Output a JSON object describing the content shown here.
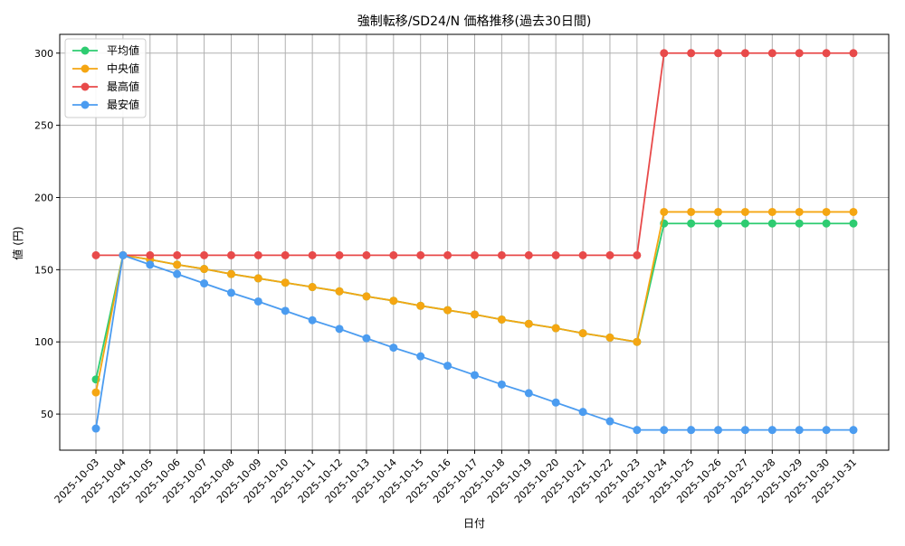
{
  "chart_data": {
    "type": "line",
    "title": "強制転移/SD24/N 価格推移(過去30日間)",
    "xlabel": "日付",
    "ylabel": "値 (円)",
    "ylim": [
      25,
      313
    ],
    "yticks": [
      50,
      100,
      150,
      200,
      250,
      300
    ],
    "grid": true,
    "legend_position": "top-left",
    "categories": [
      "2025-10-03",
      "2025-10-04",
      "2025-10-05",
      "2025-10-06",
      "2025-10-07",
      "2025-10-08",
      "2025-10-09",
      "2025-10-10",
      "2025-10-11",
      "2025-10-12",
      "2025-10-13",
      "2025-10-14",
      "2025-10-15",
      "2025-10-16",
      "2025-10-17",
      "2025-10-18",
      "2025-10-19",
      "2025-10-20",
      "2025-10-21",
      "2025-10-22",
      "2025-10-23",
      "2025-10-24",
      "2025-10-25",
      "2025-10-26",
      "2025-10-27",
      "2025-10-28",
      "2025-10-29",
      "2025-10-30",
      "2025-10-31"
    ],
    "series": [
      {
        "name": "平均値",
        "color": "#2ecc71",
        "values": [
          74,
          160,
          157,
          153.5,
          150.5,
          147,
          144,
          141,
          138,
          135,
          131.5,
          128.5,
          125,
          122,
          119,
          115.5,
          112.5,
          109.5,
          106,
          103,
          100,
          182,
          182,
          182,
          182,
          182,
          182,
          182,
          182
        ]
      },
      {
        "name": "中央値",
        "color": "#f5a612",
        "values": [
          65,
          160,
          157,
          153.5,
          150.5,
          147,
          144,
          141,
          138,
          135,
          131.5,
          128.5,
          125,
          122,
          119,
          115.5,
          112.5,
          109.5,
          106,
          103,
          100,
          190,
          190,
          190,
          190,
          190,
          190,
          190,
          190
        ]
      },
      {
        "name": "最高値",
        "color": "#e84a4a",
        "values": [
          160,
          160,
          160,
          160,
          160,
          160,
          160,
          160,
          160,
          160,
          160,
          160,
          160,
          160,
          160,
          160,
          160,
          160,
          160,
          160,
          160,
          300,
          300,
          300,
          300,
          300,
          300,
          300,
          300
        ]
      },
      {
        "name": "最安値",
        "color": "#4b9cf0",
        "values": [
          40,
          160,
          153.5,
          147,
          140.5,
          134,
          128,
          121.5,
          115,
          109,
          102.5,
          96,
          90,
          83.5,
          77,
          70.5,
          64.5,
          58,
          51.5,
          45,
          39,
          39,
          39,
          39,
          39,
          39,
          39,
          39,
          39
        ]
      }
    ]
  }
}
